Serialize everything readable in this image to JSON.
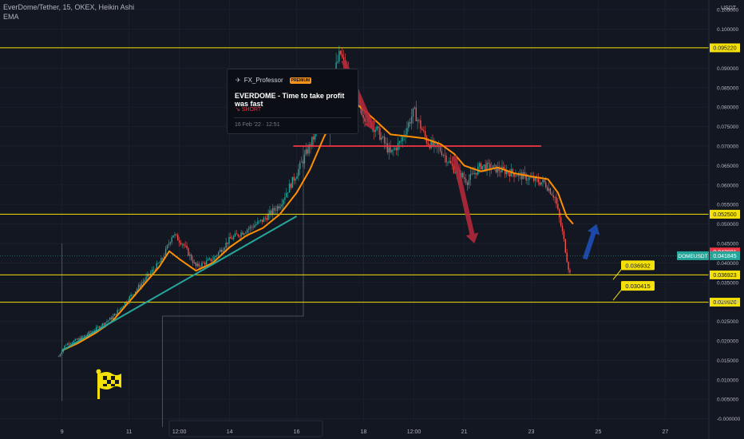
{
  "header": {
    "symbol_line": "EverDome/Tether, 15, OKEX, Heikin Ashi",
    "indicator": "EMA"
  },
  "idea_card": {
    "author": "FX_Professor",
    "badge": "PREMIUM",
    "title": "EVERDOME - Time to take profit was fast",
    "direction": "↘ SHORT",
    "date": "16 Feb '22 · 12:51"
  },
  "icons": {
    "flag": "checkered-flag-icon",
    "pin": "pin-icon"
  },
  "colors": {
    "background": "#131722",
    "horizontal_level": "#f5e10a",
    "resistance": "#f23645",
    "ema": "#ff8f00",
    "trendline": "#26a69a",
    "arrow_down": "#b2283a",
    "arrow_up": "#1e4fb8",
    "price_label": "#26a69a",
    "price_label_red": "#f23645",
    "candle_up": "#26a69a",
    "candle_down": "#ef5350"
  },
  "chart_data": {
    "type": "line",
    "currency": "USDT",
    "y_ticks": [
      "0.105000",
      "0.100000",
      "0.090000",
      "0.085000",
      "0.080000",
      "0.075000",
      "0.070000",
      "0.065000",
      "0.060000",
      "0.055000",
      "0.050000",
      "0.045000",
      "0.040000",
      "0.035000",
      "0.030000",
      "0.025000",
      "0.020000",
      "0.015000",
      "0.010000",
      "0.005000",
      "-0.000000"
    ],
    "ylim": [
      -0.0007,
      0.1075
    ],
    "x_ticks": [
      {
        "label": "9",
        "day": 9
      },
      {
        "label": "11",
        "day": 11
      },
      {
        "label": "12:00",
        "day": 12.5
      },
      {
        "label": "14",
        "day": 14
      },
      {
        "label": "16",
        "day": 16
      },
      {
        "label": "18",
        "day": 18
      },
      {
        "label": "12:00",
        "day": 19.5
      },
      {
        "label": "21",
        "day": 21
      },
      {
        "label": "23",
        "day": 23
      },
      {
        "label": "25",
        "day": 25
      },
      {
        "label": "27",
        "day": 27
      }
    ],
    "xlim": [
      7.15,
      28.3
    ],
    "horizontal_levels": [
      {
        "value": 0.09522,
        "label": "0.095220"
      },
      {
        "value": 0.0525,
        "label": "0.052500"
      },
      {
        "value": 0.036923,
        "label": "0.036923"
      },
      {
        "value": 0.02992,
        "label": "0.029920"
      }
    ],
    "price_labels": [
      {
        "value": 0.042801,
        "label": "0.042801",
        "kind": "red"
      },
      {
        "value": 0.041845,
        "label": "0.041845",
        "kind": "green",
        "name": "DOMEUSDT"
      }
    ],
    "callouts": [
      {
        "label": "0.036932",
        "value": 0.036932
      },
      {
        "label": "0.030415",
        "value": 0.030415
      }
    ],
    "resistance": {
      "value": 0.07,
      "from_day": 15.9,
      "to_day": 23.3
    },
    "price_series": [
      [
        8.9,
        0.016
      ],
      [
        9.1,
        0.019
      ],
      [
        9.5,
        0.0205
      ],
      [
        10.0,
        0.023
      ],
      [
        10.5,
        0.026
      ],
      [
        11.0,
        0.031
      ],
      [
        11.5,
        0.036
      ],
      [
        12.0,
        0.041
      ],
      [
        12.3,
        0.0475
      ],
      [
        12.6,
        0.045
      ],
      [
        13.0,
        0.039
      ],
      [
        13.5,
        0.041
      ],
      [
        14.0,
        0.046
      ],
      [
        14.6,
        0.049
      ],
      [
        15.0,
        0.051
      ],
      [
        15.5,
        0.055
      ],
      [
        16.0,
        0.063
      ],
      [
        16.5,
        0.072
      ],
      [
        16.8,
        0.081
      ],
      [
        17.1,
        0.088
      ],
      [
        17.3,
        0.094
      ],
      [
        17.6,
        0.086
      ],
      [
        18.0,
        0.078
      ],
      [
        18.4,
        0.074
      ],
      [
        18.8,
        0.068
      ],
      [
        19.1,
        0.071
      ],
      [
        19.5,
        0.079
      ],
      [
        19.9,
        0.071
      ],
      [
        20.3,
        0.069
      ],
      [
        20.7,
        0.064
      ],
      [
        21.1,
        0.061
      ],
      [
        21.5,
        0.065
      ],
      [
        22.0,
        0.064
      ],
      [
        22.5,
        0.063
      ],
      [
        23.0,
        0.0615
      ],
      [
        23.4,
        0.0605
      ],
      [
        23.7,
        0.057
      ],
      [
        23.95,
        0.047
      ],
      [
        24.1,
        0.039
      ],
      [
        24.2,
        0.036
      ]
    ],
    "ema_series": [
      [
        9.0,
        0.0175
      ],
      [
        9.5,
        0.0195
      ],
      [
        10.0,
        0.022
      ],
      [
        10.5,
        0.025
      ],
      [
        11.0,
        0.03
      ],
      [
        11.5,
        0.035
      ],
      [
        11.9,
        0.039
      ],
      [
        12.2,
        0.043
      ],
      [
        12.5,
        0.041
      ],
      [
        13.0,
        0.038
      ],
      [
        13.5,
        0.04
      ],
      [
        14.0,
        0.044
      ],
      [
        14.5,
        0.047
      ],
      [
        15.0,
        0.049
      ],
      [
        15.5,
        0.0525
      ],
      [
        16.0,
        0.058
      ],
      [
        16.4,
        0.064
      ],
      [
        16.8,
        0.072
      ],
      [
        17.2,
        0.079
      ],
      [
        17.5,
        0.083
      ],
      [
        17.9,
        0.08
      ],
      [
        18.3,
        0.077
      ],
      [
        18.8,
        0.073
      ],
      [
        19.3,
        0.0725
      ],
      [
        19.8,
        0.072
      ],
      [
        20.3,
        0.0705
      ],
      [
        20.7,
        0.068
      ],
      [
        21.0,
        0.065
      ],
      [
        21.5,
        0.0635
      ],
      [
        22.0,
        0.0645
      ],
      [
        22.5,
        0.063
      ],
      [
        23.0,
        0.0622
      ],
      [
        23.5,
        0.0615
      ],
      [
        23.8,
        0.058
      ],
      [
        24.05,
        0.052
      ],
      [
        24.25,
        0.05
      ]
    ],
    "trendline": [
      [
        9.0,
        0.0175
      ],
      [
        16.0,
        0.052
      ]
    ],
    "arrows": [
      {
        "kind": "down",
        "from": [
          17.4,
          0.092
        ],
        "to": [
          18.3,
          0.074
        ]
      },
      {
        "kind": "down",
        "from": [
          20.7,
          0.0675
        ],
        "to": [
          21.3,
          0.045
        ]
      },
      {
        "kind": "up",
        "from": [
          24.6,
          0.041
        ],
        "to": [
          24.95,
          0.05
        ]
      }
    ]
  }
}
